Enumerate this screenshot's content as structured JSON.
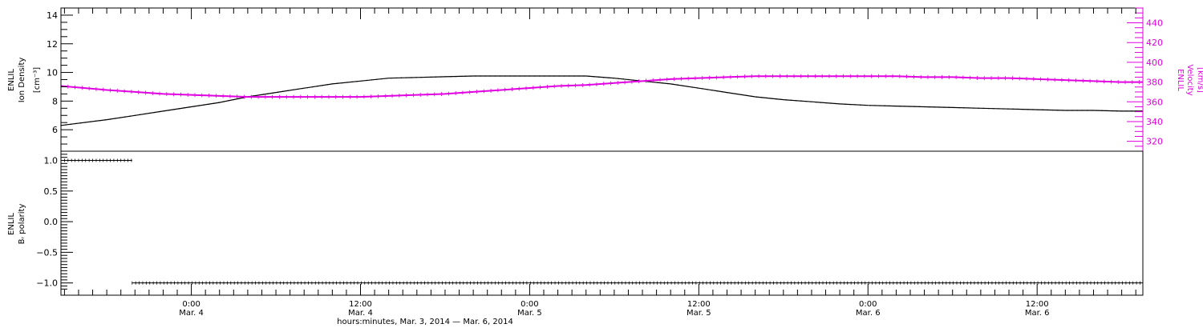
{
  "colors": {
    "axis": "#000000",
    "velocity": "#e000e0",
    "background": "#ffffff"
  },
  "chart_data": [
    {
      "type": "line",
      "panel": "top",
      "x_unit": "hours since Mar. 3, 2014 00:00",
      "xlim": [
        14.75,
        91.5
      ],
      "left_axis": {
        "label_lines": [
          "ENLIL",
          "Ion Density"
        ],
        "unit": "[cm⁻³]",
        "ylim": [
          4.5,
          14.5
        ],
        "ticks": [
          6,
          8,
          10,
          12,
          14
        ],
        "tick_labels": [
          "6",
          "8",
          "10",
          "12",
          "14"
        ]
      },
      "right_axis": {
        "label_lines": [
          "ENLIL",
          "Velocity"
        ],
        "unit": "[km/s]",
        "color": "#e000e0",
        "ylim": [
          310,
          455
        ],
        "ticks": [
          320,
          340,
          360,
          380,
          400,
          420,
          440
        ],
        "tick_labels": [
          "320",
          "340",
          "360",
          "380",
          "400",
          "420",
          "440"
        ]
      },
      "series": [
        {
          "axis": "left",
          "color": "#000000",
          "x": [
            14.75,
            18,
            20,
            22,
            24,
            26,
            28,
            30,
            32,
            34,
            36,
            38,
            40,
            42,
            44,
            46,
            48,
            50,
            52,
            54,
            56,
            58,
            60,
            62,
            64,
            66,
            68,
            70,
            72,
            74,
            76,
            78,
            80,
            82,
            84,
            86,
            88,
            90,
            91.5
          ],
          "y": [
            6.3,
            6.7,
            7.0,
            7.3,
            7.6,
            7.9,
            8.3,
            8.6,
            8.9,
            9.2,
            9.4,
            9.6,
            9.65,
            9.7,
            9.75,
            9.75,
            9.75,
            9.75,
            9.75,
            9.6,
            9.4,
            9.2,
            8.9,
            8.6,
            8.3,
            8.1,
            7.95,
            7.8,
            7.7,
            7.65,
            7.6,
            7.55,
            7.5,
            7.45,
            7.4,
            7.35,
            7.35,
            7.3,
            7.3
          ]
        },
        {
          "axis": "right",
          "color": "#e000e0",
          "x": [
            14.75,
            18,
            20,
            22,
            24,
            26,
            28,
            30,
            32,
            34,
            36,
            38,
            40,
            42,
            44,
            46,
            48,
            50,
            52,
            54,
            56,
            58,
            60,
            62,
            64,
            66,
            68,
            70,
            72,
            74,
            76,
            78,
            80,
            82,
            84,
            86,
            88,
            90,
            91.5
          ],
          "y": [
            376,
            372,
            370,
            368,
            367,
            366,
            365,
            365,
            365,
            365,
            365,
            366,
            367,
            368,
            370,
            372,
            374,
            376,
            377,
            379,
            381,
            383,
            384,
            385,
            386,
            386,
            386,
            386,
            386,
            386,
            385,
            385,
            384,
            384,
            383,
            382,
            381,
            380,
            380
          ]
        }
      ]
    },
    {
      "type": "scatter",
      "panel": "bottom",
      "x_unit": "hours since Mar. 3, 2014 00:00",
      "xlim": [
        14.75,
        91.5
      ],
      "left_axis": {
        "label_lines": [
          "ENLIL",
          "Bᵣ polarity"
        ],
        "ylim": [
          -1.2,
          1.15
        ],
        "ticks": [
          -1.0,
          -0.5,
          0.0,
          0.5,
          1.0
        ],
        "tick_labels": [
          "−1.0",
          "−0.5",
          "0.0",
          "0.5",
          "1.0"
        ]
      },
      "series": [
        {
          "color": "#000000",
          "x_range": [
            14.75,
            19.8
          ],
          "value": 1.0
        },
        {
          "color": "#000000",
          "x_range": [
            19.8,
            91.5
          ],
          "value": -1.0
        }
      ],
      "x_axis": {
        "ticks": [
          24,
          36,
          48,
          60,
          72,
          84
        ],
        "tick_labels": [
          [
            "0:00",
            "Mar. 4"
          ],
          [
            "12:00",
            "Mar. 4"
          ],
          [
            "0:00",
            "Mar. 5"
          ],
          [
            "12:00",
            "Mar. 5"
          ],
          [
            "0:00",
            "Mar. 6"
          ],
          [
            "12:00",
            "Mar. 6"
          ]
        ],
        "xlabel": "hours:minutes, Mar.  3, 2014 — Mar.  6, 2014"
      }
    }
  ]
}
